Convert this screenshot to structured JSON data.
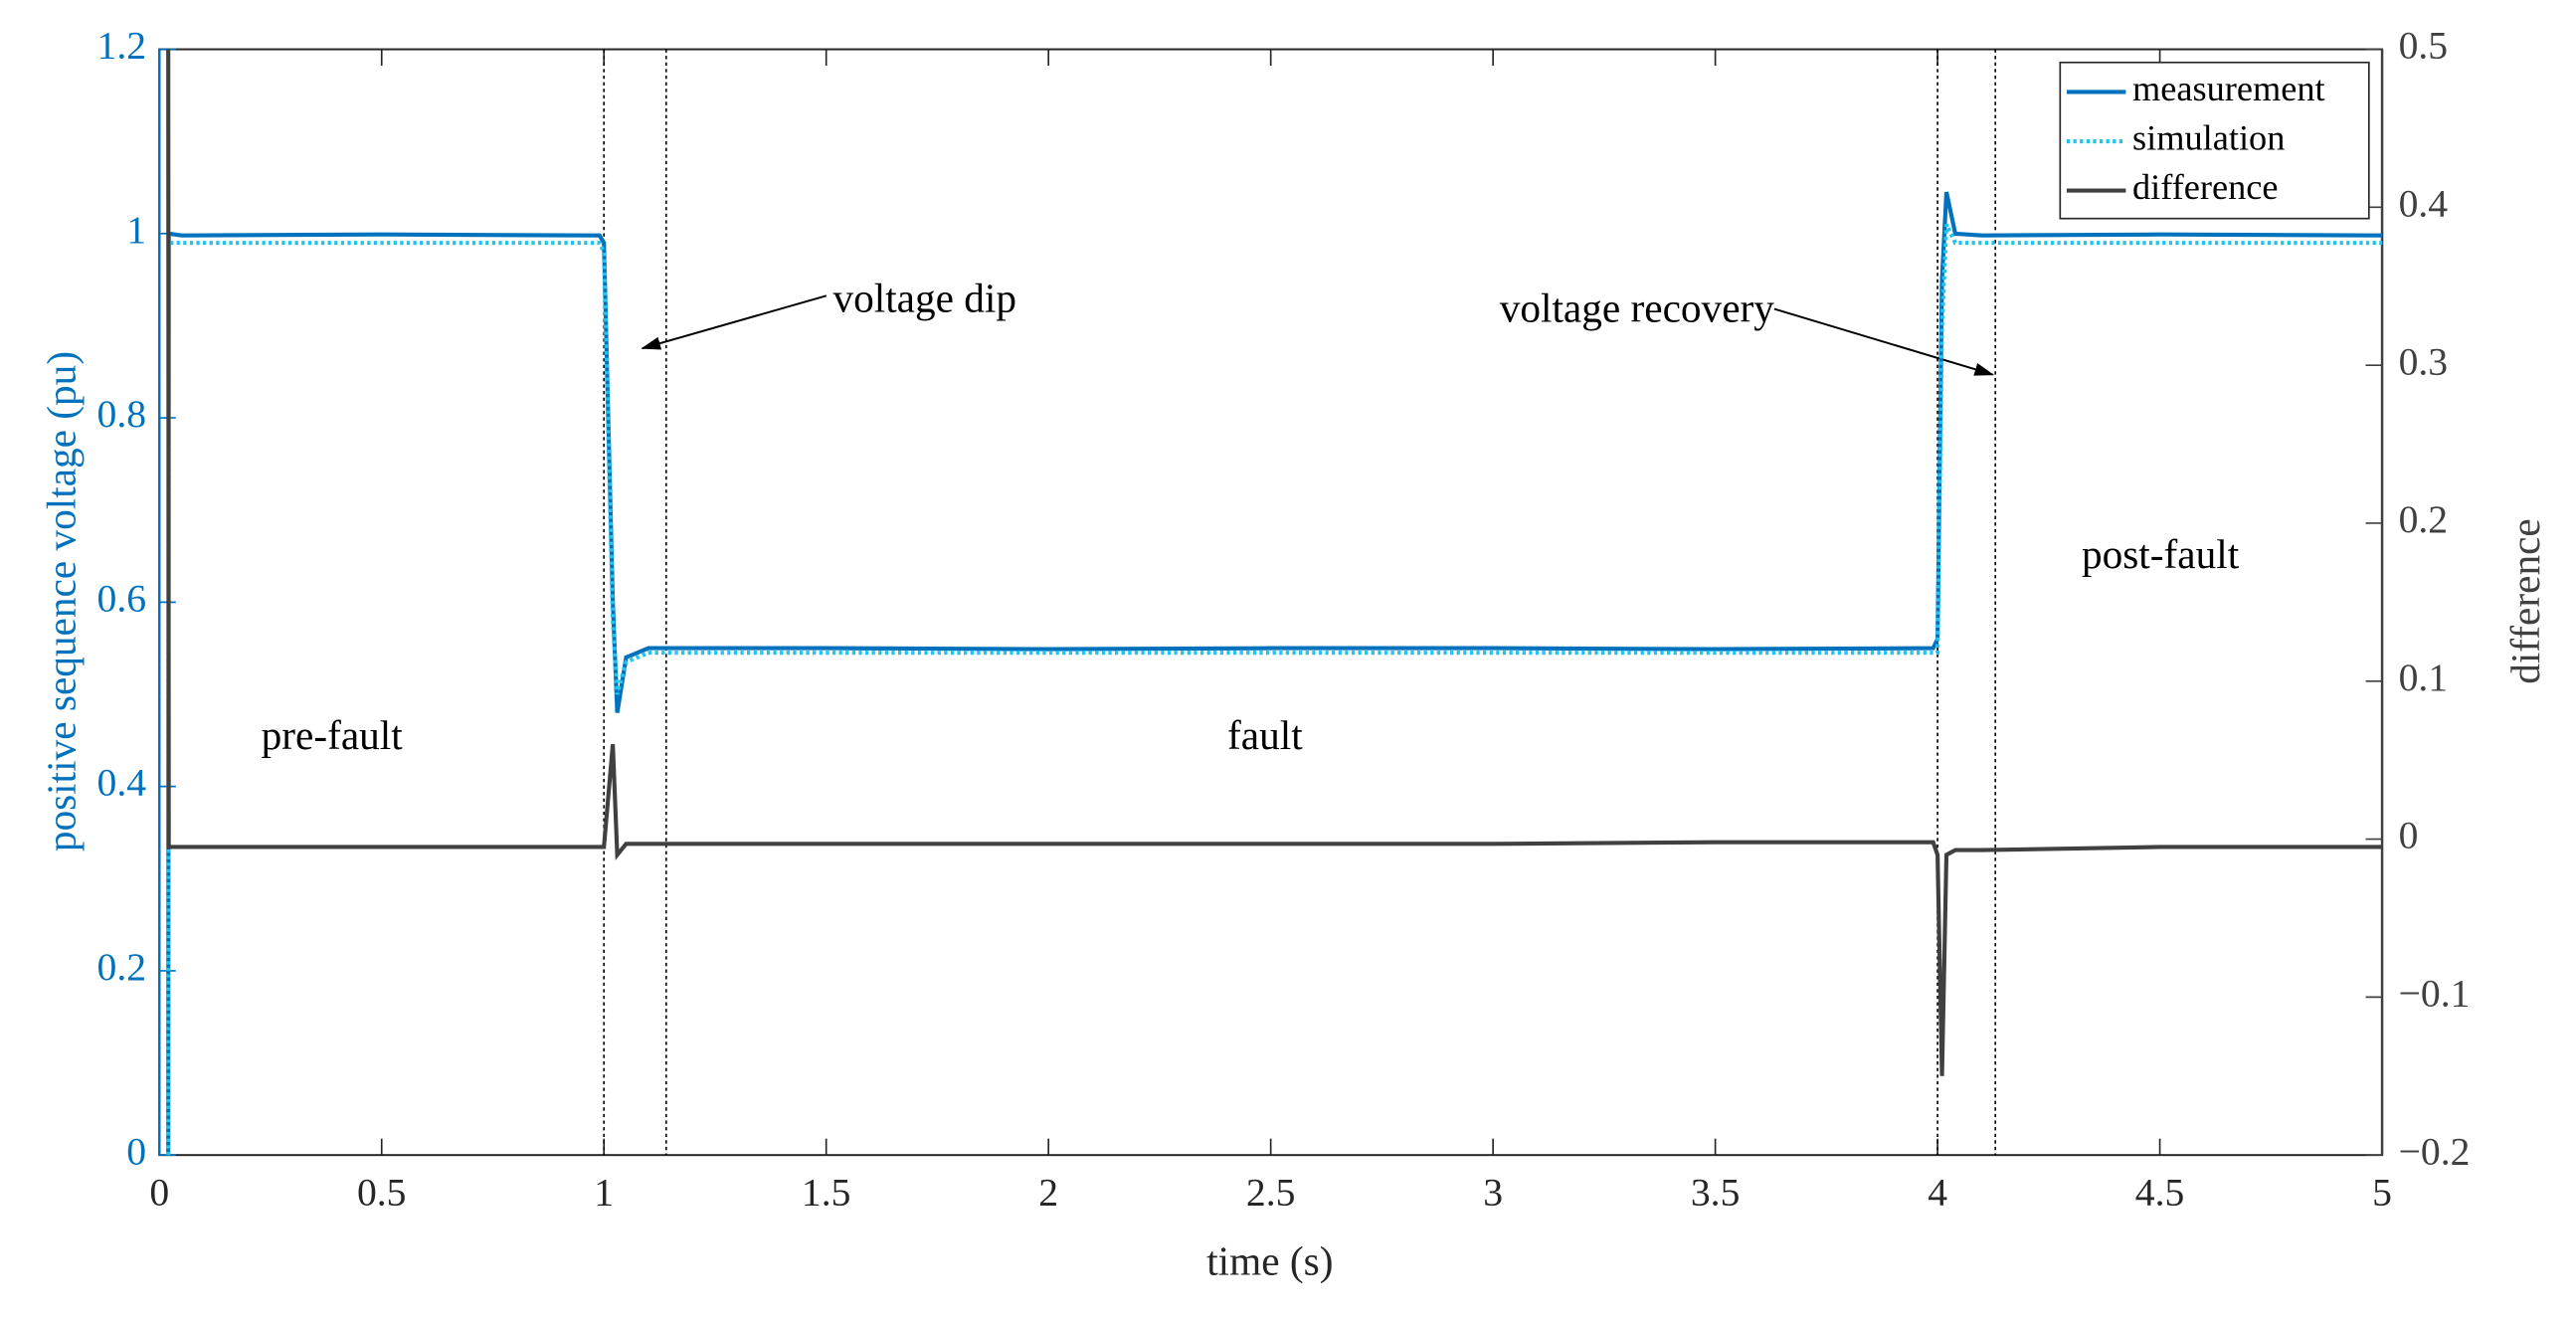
{
  "chart_data": {
    "type": "line",
    "xlabel": "time (s)",
    "ylabel": "positive sequence voltage (pu)",
    "y2label": "difference",
    "x": [
      0.02,
      0.021,
      0.05,
      0.5,
      0.99,
      1.0,
      1.02,
      1.03,
      1.05,
      1.1,
      1.5,
      2,
      2.5,
      3,
      3.5,
      3.99,
      4.0,
      4.01,
      4.02,
      4.04,
      4.1,
      4.5,
      5
    ],
    "series": [
      {
        "name": "measurement",
        "color": "#0072bd",
        "style": "solid",
        "axis": "y",
        "values": [
          0,
          1.0,
          0.998,
          0.999,
          0.998,
          0.99,
          0.6,
          0.48,
          0.54,
          0.55,
          0.55,
          0.549,
          0.55,
          0.55,
          0.549,
          0.55,
          0.56,
          0.95,
          1.045,
          1.0,
          0.998,
          0.999,
          0.998
        ]
      },
      {
        "name": "simulation",
        "color": "#22c4ee",
        "style": "dotted",
        "axis": "y",
        "values": [
          0,
          0.99,
          0.99,
          0.99,
          0.99,
          0.98,
          0.58,
          0.5,
          0.535,
          0.545,
          0.545,
          0.545,
          0.545,
          0.545,
          0.545,
          0.545,
          0.545,
          0.9,
          1.01,
          0.99,
          0.99,
          0.99,
          0.99
        ]
      },
      {
        "name": "difference",
        "color": "#404040",
        "style": "solid",
        "axis": "y2",
        "values": [
          0.5,
          -0.005,
          -0.005,
          -0.005,
          -0.005,
          -0.005,
          0.06,
          -0.01,
          -0.003,
          -0.003,
          -0.003,
          -0.003,
          -0.003,
          -0.003,
          -0.002,
          -0.002,
          -0.01,
          -0.15,
          -0.01,
          -0.007,
          -0.007,
          -0.005,
          -0.005
        ]
      }
    ],
    "xlim": [
      0,
      5
    ],
    "xticks": [
      0,
      0.5,
      1,
      1.5,
      2,
      2.5,
      3,
      3.5,
      4,
      4.5,
      5
    ],
    "ylim": [
      0,
      1.2
    ],
    "yticks": [
      0,
      0.2,
      0.4,
      0.6,
      0.8,
      1,
      1.2
    ],
    "y2lim": [
      -0.2,
      0.5
    ],
    "y2ticks": [
      {
        "value": -0.2,
        "label": "−0.2"
      },
      {
        "value": -0.1,
        "label": "−0.1"
      },
      0,
      0.1,
      0.2,
      0.3,
      0.4,
      0.5
    ],
    "ycolor": "#0072bd",
    "y2color": "#404040",
    "vlines": [
      1,
      1.14,
      4,
      4.13
    ],
    "annotations": [
      "voltage dip",
      "voltage recovery",
      "pre-fault",
      "fault",
      "post-fault"
    ],
    "legend": "upper right",
    "grid": false
  }
}
